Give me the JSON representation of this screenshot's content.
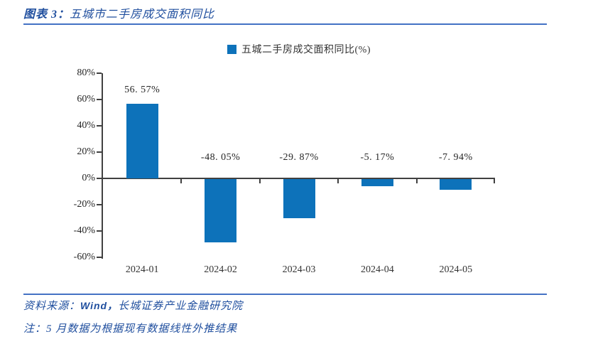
{
  "header": {
    "title_prefix": "图表 3：",
    "title_text": "五城市二手房成交面积同比"
  },
  "chart_data": {
    "type": "bar",
    "legend": "五城二手房成交面积同比(%)",
    "legend_position": "top-center",
    "categories": [
      "2024-01",
      "2024-02",
      "2024-03",
      "2024-04",
      "2024-05"
    ],
    "values": [
      56.57,
      -48.05,
      -29.87,
      -5.17,
      -7.94
    ],
    "point_labels": [
      "56. 57%",
      "-48. 05%",
      "-29. 87%",
      "-5. 17%",
      "-7. 94%"
    ],
    "ylim": [
      -60,
      80
    ],
    "yticks": [
      80,
      60,
      40,
      20,
      0,
      -20,
      -40,
      -60
    ],
    "ytick_labels": [
      "80%",
      "60%",
      "40%",
      "20%",
      "0%",
      "-20%",
      "-40%",
      "-60%"
    ],
    "grid": false
  },
  "footer": {
    "source_label": "资料来源：",
    "source_wind": "Wind，",
    "source_org": "长城证券产业金融研究院",
    "note": "注：5 月数据为根据现有数据线性外推结果"
  },
  "colors": {
    "bar_blue": "#0d72ba",
    "rule_blue": "#4472c4",
    "accent_text_blue": "#1f4e9e",
    "axis_gray": "#404040",
    "chart_text": "#262626"
  }
}
